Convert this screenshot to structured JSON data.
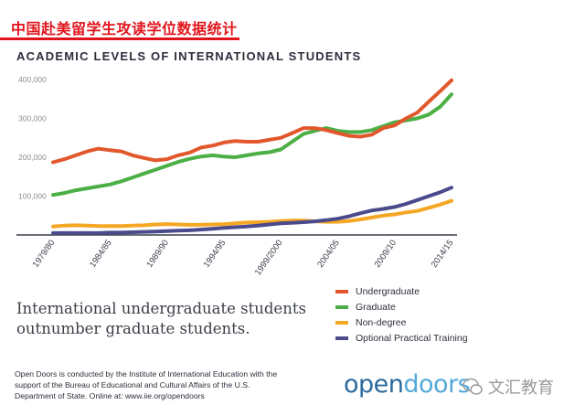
{
  "banner": {
    "title": "中国赴美留学生攻读学位数据统计"
  },
  "chart_data": {
    "type": "line",
    "title": "ACADEMIC LEVELS OF INTERNATIONAL STUDENTS",
    "xlabel": "",
    "ylabel": "",
    "ylim": [
      0,
      400000
    ],
    "y_ticks": [
      "100,000",
      "200,000",
      "300,000",
      "400,000"
    ],
    "y_tick_values": [
      100000,
      200000,
      300000,
      400000
    ],
    "x_tick_labels": [
      "1979/80",
      "1984/85",
      "1989/90",
      "1994/95",
      "1999/2000",
      "2004/05",
      "2009/10",
      "2014/15"
    ],
    "x_tick_years": [
      1979,
      1984,
      1989,
      1994,
      1999,
      2004,
      2009,
      2014
    ],
    "x_start_year": 1979,
    "x_end_year": 2014,
    "grid": false,
    "legend_position": "bottom-right",
    "series": [
      {
        "name": "Undergraduate",
        "color": "#e2572c",
        "values": [
          187000,
          195000,
          205000,
          215000,
          222000,
          218000,
          215000,
          205000,
          198000,
          192000,
          195000,
          205000,
          212000,
          225000,
          230000,
          238000,
          242000,
          240000,
          240000,
          245000,
          250000,
          262000,
          275000,
          275000,
          270000,
          262000,
          255000,
          253000,
          258000,
          275000,
          282000,
          300000,
          315000,
          343000,
          370000,
          398000
        ]
      },
      {
        "name": "Graduate",
        "color": "#4caf45",
        "values": [
          103000,
          108000,
          115000,
          120000,
          125000,
          130000,
          138000,
          148000,
          158000,
          168000,
          178000,
          188000,
          196000,
          202000,
          205000,
          202000,
          200000,
          205000,
          210000,
          213000,
          220000,
          240000,
          260000,
          268000,
          275000,
          268000,
          265000,
          265000,
          270000,
          280000,
          290000,
          295000,
          300000,
          310000,
          330000,
          362000
        ]
      },
      {
        "name": "Non-degree",
        "color": "#f5a623",
        "values": [
          22000,
          24000,
          25000,
          24000,
          23000,
          23000,
          23000,
          24000,
          25000,
          27000,
          28000,
          27000,
          26000,
          26000,
          27000,
          28000,
          30000,
          32000,
          33000,
          34000,
          36000,
          37000,
          37000,
          35000,
          34000,
          34000,
          36000,
          40000,
          45000,
          50000,
          53000,
          58000,
          62000,
          70000,
          78000,
          88000
        ]
      },
      {
        "name": "Optional Practical Training",
        "color": "#4a4a8c",
        "values": [
          5000,
          5000,
          5000,
          5000,
          5000,
          6000,
          6000,
          7000,
          8000,
          9000,
          10000,
          11000,
          12000,
          14000,
          16000,
          18000,
          20000,
          22000,
          24000,
          27000,
          30000,
          31000,
          33000,
          35000,
          38000,
          42000,
          48000,
          56000,
          63000,
          67000,
          72000,
          80000,
          90000,
          100000,
          110000,
          122000
        ]
      }
    ]
  },
  "tagline": "International undergraduate students outnumber graduate students.",
  "footer": {
    "text": "Open Doors is conducted by the Institute of International Education with the support of the Bureau of Educational and Cultural Affairs of the U.S. Department of State. Online at: www.iie.org/opendoors"
  },
  "logo": {
    "part1": "open",
    "part2": "doors"
  },
  "watermark": {
    "text": "文汇教育"
  }
}
